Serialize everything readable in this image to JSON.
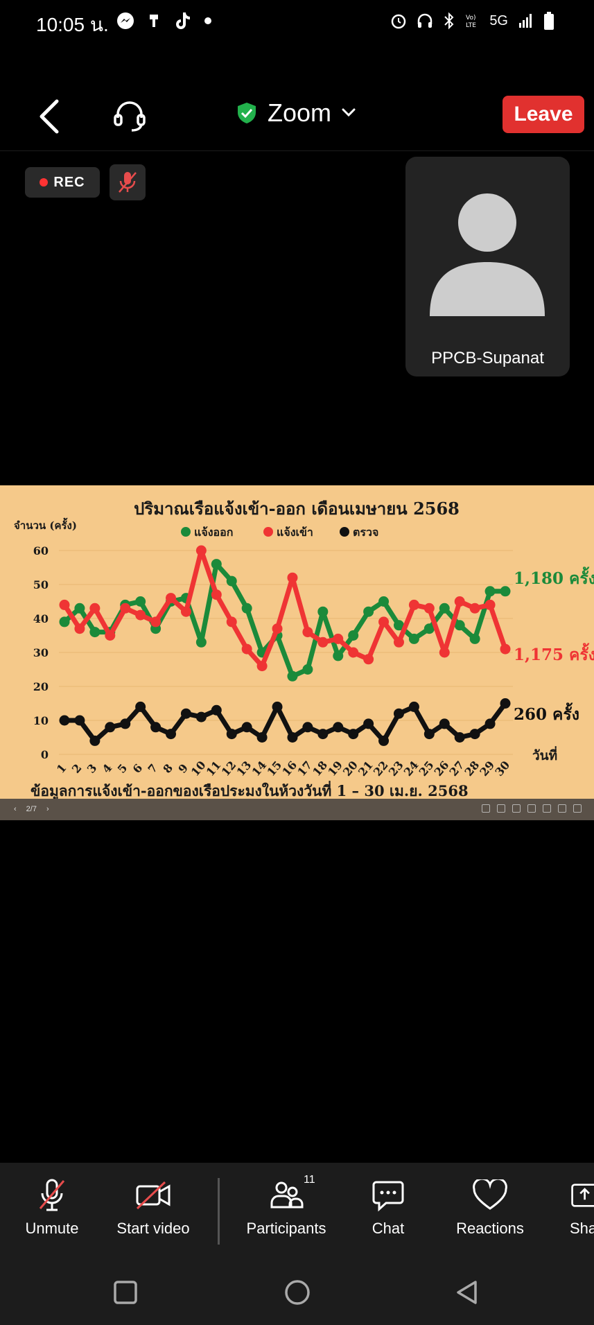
{
  "status_bar": {
    "time": "10:05 น.",
    "network": "5G"
  },
  "meeting": {
    "title": "Zoom",
    "leave_label": "Leave",
    "rec_label": "REC"
  },
  "participant": {
    "name": "PPCB-Supanat"
  },
  "toolbar": {
    "unmute_label": "Unmute",
    "video_label": "Start video",
    "participants_label": "Participants",
    "participants_count": "11",
    "chat_label": "Chat",
    "reactions_label": "Reactions",
    "share_label": "Sha"
  },
  "share_viewer": {
    "page_indicator": "2/7"
  },
  "chart_data": {
    "type": "line",
    "title": "ปริมาณเรือแจ้งเข้า-ออก เดือนเมษายน 2568",
    "subtitle": "ข้อมูลการแจ้งเข้า-ออกของเรือประมงในห้วงวันที่ 1 – 30 เม.ย. 2568",
    "ylabel": "จำนวน (ครั้ง)",
    "xlabel": "วันที่",
    "ylim": [
      0,
      60
    ],
    "yticks": [
      0,
      10,
      20,
      30,
      40,
      50,
      60
    ],
    "legend_position": "top",
    "x": [
      1,
      2,
      3,
      4,
      5,
      6,
      7,
      8,
      9,
      10,
      11,
      12,
      13,
      14,
      15,
      16,
      17,
      18,
      19,
      20,
      21,
      22,
      23,
      24,
      25,
      26,
      27,
      28,
      29,
      30
    ],
    "series": [
      {
        "name": "แจ้งออก",
        "color": "#1b8a3a",
        "total_label": "1,180 ครั้ง",
        "values": [
          39,
          43,
          36,
          36,
          44,
          45,
          37,
          45,
          46,
          33,
          56,
          51,
          43,
          30,
          35,
          23,
          25,
          42,
          29,
          35,
          42,
          45,
          38,
          34,
          37,
          43,
          38,
          34,
          48,
          48
        ]
      },
      {
        "name": "แจ้งเข้า",
        "color": "#ef3434",
        "total_label": "1,175 ครั้ง",
        "values": [
          44,
          37,
          43,
          35,
          43,
          41,
          39,
          46,
          42,
          60,
          47,
          39,
          31,
          26,
          37,
          52,
          36,
          33,
          34,
          30,
          28,
          39,
          33,
          44,
          43,
          30,
          45,
          43,
          44,
          31
        ]
      },
      {
        "name": "ตรวจ",
        "color": "#111111",
        "total_label": "260 ครั้ง",
        "values": [
          10,
          10,
          4,
          8,
          9,
          14,
          8,
          6,
          12,
          11,
          13,
          6,
          8,
          5,
          14,
          5,
          8,
          6,
          8,
          6,
          9,
          4,
          12,
          14,
          6,
          9,
          5,
          6,
          9,
          15
        ]
      }
    ]
  }
}
